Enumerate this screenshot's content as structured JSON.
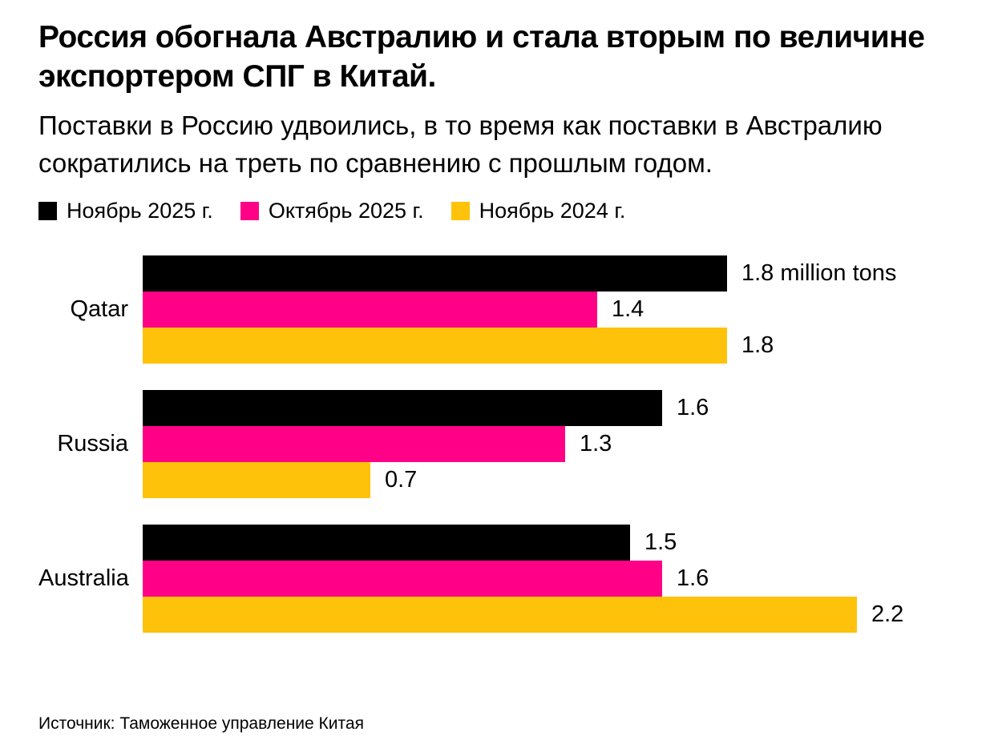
{
  "header": {
    "title": "Россия обогнала Австралию и стала вторым по величине экспортером СПГ в Китай.",
    "subtitle": "Поставки в Россию удвоились, в то время как поставки в Австралию сократились на треть по сравнению с прошлым годом."
  },
  "chart_data": {
    "type": "bar",
    "orientation": "horizontal",
    "categories": [
      "Qatar",
      "Russia",
      "Australia"
    ],
    "series": [
      {
        "name": "Ноябрь 2025 г.",
        "color": "#000000",
        "values": [
          1.8,
          1.6,
          1.5
        ],
        "labels": [
          "1.8 million tons",
          "1.6",
          "1.5"
        ]
      },
      {
        "name": "Октябрь 2025 г.",
        "color": "#ff0087",
        "values": [
          1.4,
          1.3,
          1.6
        ],
        "labels": [
          "1.4",
          "1.3",
          "1.6"
        ]
      },
      {
        "name": "Ноябрь 2024 г.",
        "color": "#ffc20a",
        "values": [
          1.8,
          0.7,
          2.2
        ],
        "labels": [
          "1.8",
          "0.7",
          "2.2"
        ]
      }
    ],
    "unit": "million tons",
    "xlim": [
      0,
      2.25
    ],
    "legend_position": "top",
    "grid": false
  },
  "source": "Источник: Таможенное управление Китая"
}
